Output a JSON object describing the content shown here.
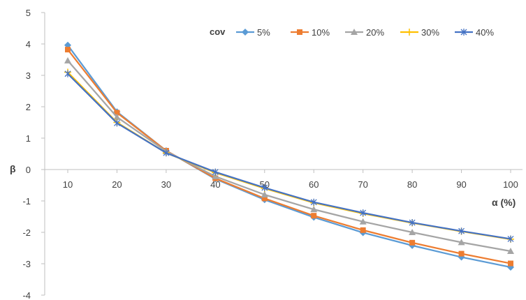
{
  "chart_data": {
    "type": "line",
    "x": [
      10,
      20,
      30,
      40,
      50,
      60,
      70,
      80,
      90,
      100
    ],
    "xlabel": "α (%)",
    "ylabel": "β",
    "xlim": [
      10,
      100
    ],
    "ylim": [
      -4,
      5
    ],
    "xticks": [
      10,
      20,
      30,
      40,
      50,
      60,
      70,
      80,
      90,
      100
    ],
    "yticks": [
      5,
      4,
      3,
      2,
      1,
      0,
      -1,
      -2,
      -3,
      -4
    ],
    "grid": false,
    "legend_title": "cov",
    "legend_position": "top-right",
    "series": [
      {
        "name": "5%",
        "color": "#5B9BD5",
        "marker": "diamond",
        "values": [
          3.96,
          1.84,
          0.6,
          -0.3,
          -0.96,
          -1.52,
          -2.01,
          -2.42,
          -2.79,
          -3.11
        ]
      },
      {
        "name": "10%",
        "color": "#ED7D31",
        "marker": "square",
        "values": [
          3.82,
          1.81,
          0.6,
          -0.28,
          -0.92,
          -1.47,
          -1.93,
          -2.33,
          -2.68,
          -2.99
        ]
      },
      {
        "name": "20%",
        "color": "#A5A5A5",
        "marker": "triangle",
        "values": [
          3.47,
          1.67,
          0.58,
          -0.22,
          -0.8,
          -1.27,
          -1.66,
          -2.0,
          -2.32,
          -2.6
        ]
      },
      {
        "name": "30%",
        "color": "#FFC000",
        "marker": "plus",
        "values": [
          3.1,
          1.5,
          0.53,
          -0.1,
          -0.6,
          -1.06,
          -1.4,
          -1.7,
          -1.97,
          -2.22
        ]
      },
      {
        "name": "40%",
        "color": "#4472C4",
        "marker": "star",
        "values": [
          3.05,
          1.48,
          0.53,
          -0.08,
          -0.58,
          -1.04,
          -1.38,
          -1.69,
          -1.96,
          -2.21
        ]
      }
    ]
  }
}
